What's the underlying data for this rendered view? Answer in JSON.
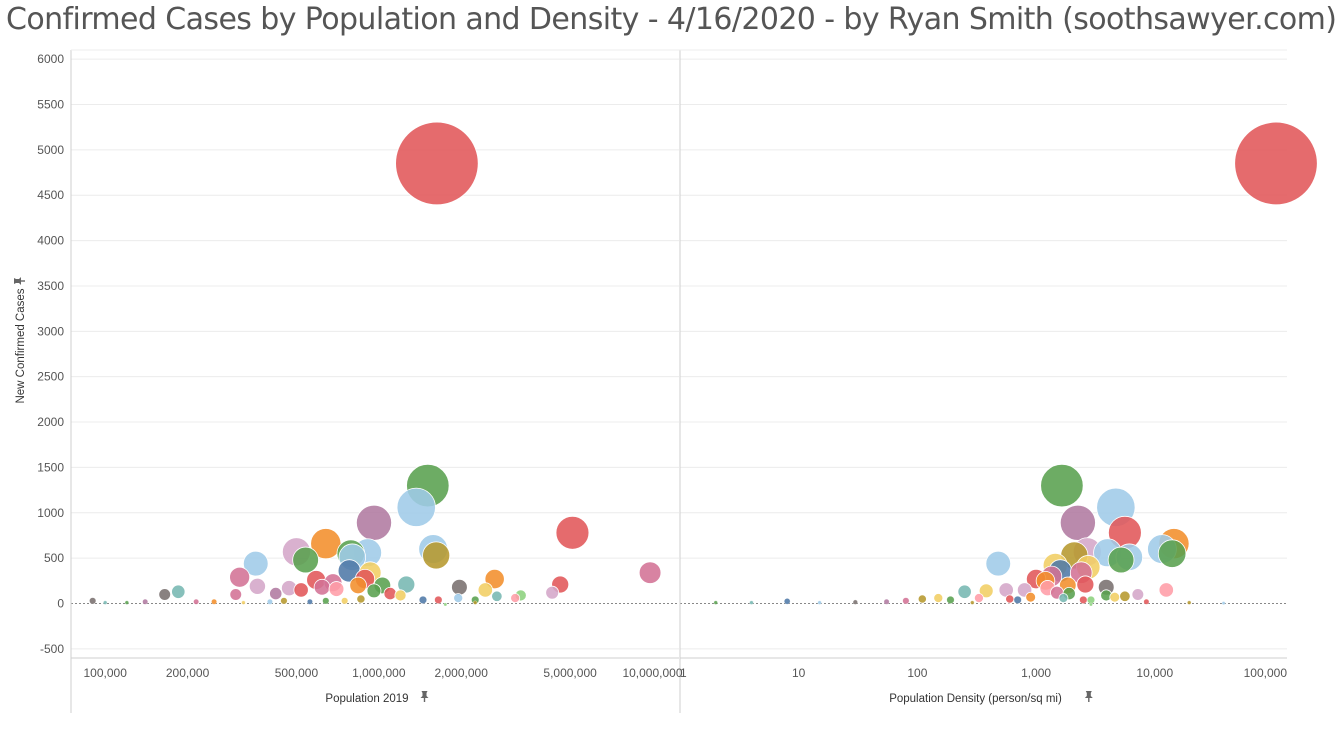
{
  "title": "Confirmed Cases by Population and Density - 4/16/2020 - by Ryan Smith (soothsawyer.com)",
  "pin_icon": "pin-icon",
  "chart_data": [
    {
      "type": "scatter",
      "title": "",
      "xlabel": "Population 2019",
      "ylabel": "New Confirmed Cases",
      "x_scale": "log",
      "xlim": [
        75000,
        12500000
      ],
      "ylim": [
        -600,
        6100
      ],
      "x_ticks": [
        {
          "value": 100000,
          "label": "100,000"
        },
        {
          "value": 200000,
          "label": "200,000"
        },
        {
          "value": 500000,
          "label": "500,000"
        },
        {
          "value": 1000000,
          "label": "1,000,000"
        },
        {
          "value": 2000000,
          "label": "2,000,000"
        },
        {
          "value": 5000000,
          "label": "5,000,000"
        },
        {
          "value": 10000000,
          "label": "10,000,000"
        }
      ],
      "y_ticks": [
        {
          "value": -500,
          "label": "-500"
        },
        {
          "value": 0,
          "label": "0"
        },
        {
          "value": 500,
          "label": "500"
        },
        {
          "value": 1000,
          "label": "1000"
        },
        {
          "value": 1500,
          "label": "1500"
        },
        {
          "value": 2000,
          "label": "2000"
        },
        {
          "value": 2500,
          "label": "2500"
        },
        {
          "value": 3000,
          "label": "3000"
        },
        {
          "value": 3500,
          "label": "3500"
        },
        {
          "value": 4000,
          "label": "4000"
        },
        {
          "value": 4500,
          "label": "4500"
        },
        {
          "value": 5000,
          "label": "5000"
        },
        {
          "value": 5500,
          "label": "5500"
        },
        {
          "value": 6000,
          "label": "6000"
        }
      ],
      "grid": true,
      "points": [
        {
          "x": 1630000,
          "y": 4850,
          "size": 4900,
          "color": "#e15759"
        },
        {
          "x": 1510000,
          "y": 1300,
          "size": 1300,
          "color": "#59a14f"
        },
        {
          "x": 1370000,
          "y": 1060,
          "size": 1060,
          "color": "#9fcbe8"
        },
        {
          "x": 960000,
          "y": 890,
          "size": 890,
          "color": "#b07aa1"
        },
        {
          "x": 5100000,
          "y": 780,
          "size": 780,
          "color": "#e15759"
        },
        {
          "x": 640000,
          "y": 660,
          "size": 660,
          "color": "#f28e2b"
        },
        {
          "x": 1580000,
          "y": 600,
          "size": 600,
          "color": "#9fcbe8"
        },
        {
          "x": 910000,
          "y": 560,
          "size": 560,
          "color": "#9fcbe8"
        },
        {
          "x": 500000,
          "y": 570,
          "size": 570,
          "color": "#d4a6c8"
        },
        {
          "x": 790000,
          "y": 550,
          "size": 550,
          "color": "#59a14f"
        },
        {
          "x": 1620000,
          "y": 530,
          "size": 530,
          "color": "#b6992d"
        },
        {
          "x": 800000,
          "y": 510,
          "size": 510,
          "color": "#9fcbe8"
        },
        {
          "x": 540000,
          "y": 480,
          "size": 480,
          "color": "#59a14f"
        },
        {
          "x": 355000,
          "y": 440,
          "size": 440,
          "color": "#9fcbe8"
        },
        {
          "x": 930000,
          "y": 340,
          "size": 340,
          "color": "#f1ce63"
        },
        {
          "x": 9800000,
          "y": 340,
          "size": 340,
          "color": "#d37295"
        },
        {
          "x": 780000,
          "y": 360,
          "size": 360,
          "color": "#4e79a7"
        },
        {
          "x": 310000,
          "y": 290,
          "size": 290,
          "color": "#d37295"
        },
        {
          "x": 2650000,
          "y": 270,
          "size": 270,
          "color": "#f28e2b"
        },
        {
          "x": 890000,
          "y": 270,
          "size": 270,
          "color": "#e15759"
        },
        {
          "x": 590000,
          "y": 260,
          "size": 260,
          "color": "#e15759"
        },
        {
          "x": 680000,
          "y": 230,
          "size": 230,
          "color": "#d37295"
        },
        {
          "x": 1260000,
          "y": 210,
          "size": 210,
          "color": "#76b7b2"
        },
        {
          "x": 4600000,
          "y": 210,
          "size": 210,
          "color": "#e15759"
        },
        {
          "x": 840000,
          "y": 200,
          "size": 200,
          "color": "#f28e2b"
        },
        {
          "x": 1030000,
          "y": 200,
          "size": 200,
          "color": "#59a14f"
        },
        {
          "x": 1970000,
          "y": 180,
          "size": 180,
          "color": "#79706e"
        },
        {
          "x": 360000,
          "y": 190,
          "size": 190,
          "color": "#d4a6c8"
        },
        {
          "x": 620000,
          "y": 180,
          "size": 180,
          "color": "#d37295"
        },
        {
          "x": 470000,
          "y": 170,
          "size": 170,
          "color": "#d4a6c8"
        },
        {
          "x": 700000,
          "y": 160,
          "size": 160,
          "color": "#ff9da7"
        },
        {
          "x": 2450000,
          "y": 150,
          "size": 150,
          "color": "#f1ce63"
        },
        {
          "x": 520000,
          "y": 150,
          "size": 150,
          "color": "#e15759"
        },
        {
          "x": 960000,
          "y": 140,
          "size": 140,
          "color": "#59a14f"
        },
        {
          "x": 185000,
          "y": 130,
          "size": 130,
          "color": "#76b7b2"
        },
        {
          "x": 4300000,
          "y": 120,
          "size": 120,
          "color": "#d4a6c8"
        },
        {
          "x": 420000,
          "y": 110,
          "size": 110,
          "color": "#b07aa1"
        },
        {
          "x": 1100000,
          "y": 110,
          "size": 110,
          "color": "#e15759"
        },
        {
          "x": 300000,
          "y": 100,
          "size": 100,
          "color": "#d37295"
        },
        {
          "x": 165000,
          "y": 100,
          "size": 100,
          "color": "#79706e"
        },
        {
          "x": 1200000,
          "y": 90,
          "size": 90,
          "color": "#f1ce63"
        },
        {
          "x": 3300000,
          "y": 90,
          "size": 90,
          "color": "#8cd17d"
        },
        {
          "x": 2700000,
          "y": 80,
          "size": 80,
          "color": "#76b7b2"
        },
        {
          "x": 1950000,
          "y": 60,
          "size": 60,
          "color": "#9fcbe8"
        },
        {
          "x": 2250000,
          "y": 40,
          "size": 40,
          "color": "#59a14f"
        },
        {
          "x": 3150000,
          "y": 60,
          "size": 60,
          "color": "#ff9da7"
        },
        {
          "x": 860000,
          "y": 50,
          "size": 50,
          "color": "#b6992d"
        },
        {
          "x": 1450000,
          "y": 40,
          "size": 40,
          "color": "#4e79a7"
        },
        {
          "x": 1650000,
          "y": 40,
          "size": 40,
          "color": "#e15759"
        },
        {
          "x": 640000,
          "y": 30,
          "size": 30,
          "color": "#59a14f"
        },
        {
          "x": 750000,
          "y": 30,
          "size": 30,
          "color": "#f1ce63"
        },
        {
          "x": 450000,
          "y": 30,
          "size": 30,
          "color": "#b6992d"
        },
        {
          "x": 400000,
          "y": 20,
          "size": 20,
          "color": "#9fcbe8"
        },
        {
          "x": 560000,
          "y": 20,
          "size": 20,
          "color": "#4e79a7"
        },
        {
          "x": 250000,
          "y": 20,
          "size": 20,
          "color": "#f28e2b"
        },
        {
          "x": 215000,
          "y": 20,
          "size": 20,
          "color": "#d37295"
        },
        {
          "x": 140000,
          "y": 20,
          "size": 20,
          "color": "#b07aa1"
        },
        {
          "x": 120000,
          "y": 10,
          "size": 10,
          "color": "#59a14f"
        },
        {
          "x": 100000,
          "y": 10,
          "size": 10,
          "color": "#76b7b2"
        },
        {
          "x": 90000,
          "y": 30,
          "size": 30,
          "color": "#79706e"
        },
        {
          "x": 320000,
          "y": 10,
          "size": 10,
          "color": "#f1ce63"
        },
        {
          "x": 2250000,
          "y": 10,
          "size": 10,
          "color": "#b6992d"
        },
        {
          "x": 1750000,
          "y": -10,
          "size": 1,
          "color": "#8cd17d"
        }
      ]
    },
    {
      "type": "scatter",
      "title": "",
      "xlabel": "Population Density (person/sq mi)",
      "ylabel": "New Confirmed Cases",
      "x_scale": "log",
      "xlim": [
        1,
        130000
      ],
      "ylim": [
        -600,
        6100
      ],
      "x_ticks": [
        {
          "value": 1,
          "label": "1"
        },
        {
          "value": 10,
          "label": "10"
        },
        {
          "value": 100,
          "label": "100"
        },
        {
          "value": 1000,
          "label": "1,000"
        },
        {
          "value": 10000,
          "label": "10,000"
        },
        {
          "value": 100000,
          "label": "100,000"
        }
      ],
      "y_ticks": [
        {
          "value": -500,
          "label": "-500"
        },
        {
          "value": 0,
          "label": "0"
        },
        {
          "value": 500,
          "label": "500"
        },
        {
          "value": 1000,
          "label": "1000"
        },
        {
          "value": 1500,
          "label": "1500"
        },
        {
          "value": 2000,
          "label": "2000"
        },
        {
          "value": 2500,
          "label": "2500"
        },
        {
          "value": 3000,
          "label": "3000"
        },
        {
          "value": 3500,
          "label": "3500"
        },
        {
          "value": 4000,
          "label": "4000"
        },
        {
          "value": 4500,
          "label": "4500"
        },
        {
          "value": 5000,
          "label": "5000"
        },
        {
          "value": 5500,
          "label": "5500"
        },
        {
          "value": 6000,
          "label": "6000"
        }
      ],
      "grid": true,
      "points": [
        {
          "x": 105000,
          "y": 4850,
          "size": 4900,
          "color": "#e15759"
        },
        {
          "x": 1650,
          "y": 1300,
          "size": 1300,
          "color": "#59a14f"
        },
        {
          "x": 4700,
          "y": 1060,
          "size": 1060,
          "color": "#9fcbe8"
        },
        {
          "x": 2250,
          "y": 890,
          "size": 890,
          "color": "#b07aa1"
        },
        {
          "x": 5600,
          "y": 780,
          "size": 780,
          "color": "#e15759"
        },
        {
          "x": 14500,
          "y": 660,
          "size": 660,
          "color": "#f28e2b"
        },
        {
          "x": 11500,
          "y": 600,
          "size": 600,
          "color": "#9fcbe8"
        },
        {
          "x": 4000,
          "y": 560,
          "size": 560,
          "color": "#9fcbe8"
        },
        {
          "x": 2700,
          "y": 570,
          "size": 570,
          "color": "#d4a6c8"
        },
        {
          "x": 14000,
          "y": 550,
          "size": 550,
          "color": "#59a14f"
        },
        {
          "x": 2100,
          "y": 530,
          "size": 530,
          "color": "#b6992d"
        },
        {
          "x": 6100,
          "y": 510,
          "size": 510,
          "color": "#9fcbe8"
        },
        {
          "x": 5200,
          "y": 480,
          "size": 480,
          "color": "#59a14f"
        },
        {
          "x": 480,
          "y": 440,
          "size": 440,
          "color": "#9fcbe8"
        },
        {
          "x": 1450,
          "y": 420,
          "size": 420,
          "color": "#f1ce63"
        },
        {
          "x": 2750,
          "y": 400,
          "size": 400,
          "color": "#f1ce63"
        },
        {
          "x": 1600,
          "y": 360,
          "size": 360,
          "color": "#4e79a7"
        },
        {
          "x": 2400,
          "y": 340,
          "size": 340,
          "color": "#d37295"
        },
        {
          "x": 1350,
          "y": 300,
          "size": 300,
          "color": "#d37295"
        },
        {
          "x": 1000,
          "y": 270,
          "size": 270,
          "color": "#e15759"
        },
        {
          "x": 1200,
          "y": 250,
          "size": 250,
          "color": "#f28e2b"
        },
        {
          "x": 2600,
          "y": 210,
          "size": 210,
          "color": "#e15759"
        },
        {
          "x": 1850,
          "y": 200,
          "size": 200,
          "color": "#f28e2b"
        },
        {
          "x": 3900,
          "y": 180,
          "size": 180,
          "color": "#79706e"
        },
        {
          "x": 1250,
          "y": 170,
          "size": 170,
          "color": "#ff9da7"
        },
        {
          "x": 12500,
          "y": 150,
          "size": 150,
          "color": "#ff9da7"
        },
        {
          "x": 560,
          "y": 150,
          "size": 150,
          "color": "#d4a6c8"
        },
        {
          "x": 800,
          "y": 150,
          "size": 150,
          "color": "#d4a6c8"
        },
        {
          "x": 380,
          "y": 140,
          "size": 140,
          "color": "#f1ce63"
        },
        {
          "x": 250,
          "y": 130,
          "size": 130,
          "color": "#76b7b2"
        },
        {
          "x": 1500,
          "y": 120,
          "size": 120,
          "color": "#d37295"
        },
        {
          "x": 1900,
          "y": 110,
          "size": 110,
          "color": "#59a14f"
        },
        {
          "x": 7200,
          "y": 100,
          "size": 100,
          "color": "#d4a6c8"
        },
        {
          "x": 3900,
          "y": 90,
          "size": 90,
          "color": "#59a14f"
        },
        {
          "x": 5600,
          "y": 80,
          "size": 80,
          "color": "#b6992d"
        },
        {
          "x": 4600,
          "y": 70,
          "size": 70,
          "color": "#f1ce63"
        },
        {
          "x": 2900,
          "y": 40,
          "size": 40,
          "color": "#8cd17d"
        },
        {
          "x": 1700,
          "y": 60,
          "size": 60,
          "color": "#76b7b2"
        },
        {
          "x": 2500,
          "y": 40,
          "size": 40,
          "color": "#e15759"
        },
        {
          "x": 600,
          "y": 50,
          "size": 50,
          "color": "#e15759"
        },
        {
          "x": 700,
          "y": 40,
          "size": 40,
          "color": "#4e79a7"
        },
        {
          "x": 900,
          "y": 70,
          "size": 70,
          "color": "#f28e2b"
        },
        {
          "x": 330,
          "y": 60,
          "size": 60,
          "color": "#ff9da7"
        },
        {
          "x": 190,
          "y": 40,
          "size": 40,
          "color": "#59a14f"
        },
        {
          "x": 150,
          "y": 60,
          "size": 60,
          "color": "#f1ce63"
        },
        {
          "x": 110,
          "y": 50,
          "size": 50,
          "color": "#b6992d"
        },
        {
          "x": 80,
          "y": 30,
          "size": 30,
          "color": "#d37295"
        },
        {
          "x": 55,
          "y": 20,
          "size": 20,
          "color": "#b07aa1"
        },
        {
          "x": 30,
          "y": 15,
          "size": 15,
          "color": "#79706e"
        },
        {
          "x": 15,
          "y": 10,
          "size": 10,
          "color": "#9fcbe8"
        },
        {
          "x": 8,
          "y": 25,
          "size": 25,
          "color": "#4e79a7"
        },
        {
          "x": 4,
          "y": 10,
          "size": 10,
          "color": "#76b7b2"
        },
        {
          "x": 2,
          "y": 10,
          "size": 10,
          "color": "#59a14f"
        },
        {
          "x": 290,
          "y": 10,
          "size": 10,
          "color": "#b6992d"
        },
        {
          "x": 8500,
          "y": 20,
          "size": 20,
          "color": "#e15759"
        },
        {
          "x": 19500,
          "y": 10,
          "size": 10,
          "color": "#b6992d"
        },
        {
          "x": 38000,
          "y": 5,
          "size": 5,
          "color": "#9fcbe8"
        },
        {
          "x": 2900,
          "y": -10,
          "size": 1,
          "color": "#8cd17d"
        }
      ]
    }
  ]
}
